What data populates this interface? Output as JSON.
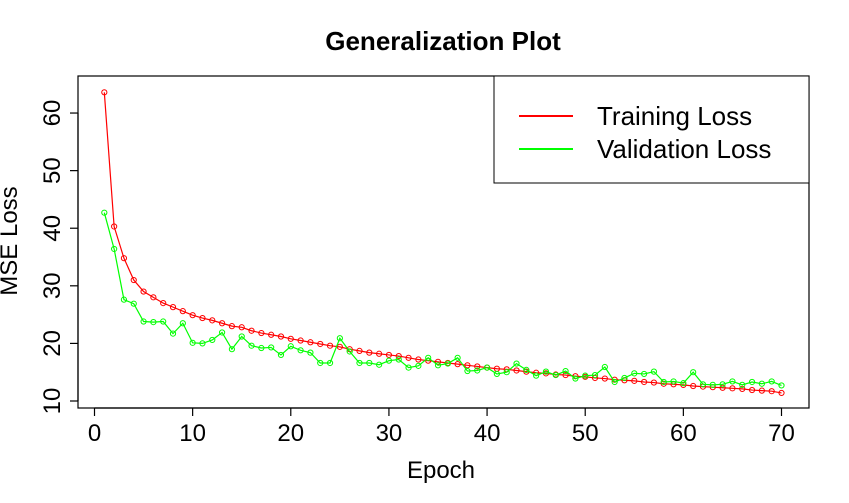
{
  "chart_data": {
    "type": "line",
    "title": "Generalization Plot",
    "xlabel": "Epoch",
    "ylabel": "MSE Loss",
    "xlim": [
      0,
      70
    ],
    "ylim": [
      10,
      64
    ],
    "xticks": [
      0,
      10,
      20,
      30,
      40,
      50,
      60,
      70
    ],
    "yticks": [
      10,
      20,
      30,
      40,
      50,
      60
    ],
    "grid": false,
    "legend_position": "top-right",
    "x": [
      1,
      2,
      3,
      4,
      5,
      6,
      7,
      8,
      9,
      10,
      11,
      12,
      13,
      14,
      15,
      16,
      17,
      18,
      19,
      20,
      21,
      22,
      23,
      24,
      25,
      26,
      27,
      28,
      29,
      30,
      31,
      32,
      33,
      34,
      35,
      36,
      37,
      38,
      39,
      40,
      41,
      42,
      43,
      44,
      45,
      46,
      47,
      48,
      49,
      50,
      51,
      52,
      53,
      54,
      55,
      56,
      57,
      58,
      59,
      60,
      61,
      62,
      63,
      64,
      65,
      66,
      67,
      68,
      69,
      70
    ],
    "series": [
      {
        "name": "Training Loss",
        "color": "#ff0000",
        "values": [
          63.6,
          40.3,
          34.8,
          31.0,
          29.0,
          28.0,
          27.0,
          26.3,
          25.6,
          24.9,
          24.4,
          24.0,
          23.5,
          23.0,
          22.8,
          22.2,
          21.8,
          21.5,
          21.2,
          20.8,
          20.5,
          20.2,
          19.9,
          19.6,
          19.4,
          19.0,
          18.7,
          18.4,
          18.2,
          18.0,
          17.8,
          17.5,
          17.2,
          17.0,
          16.8,
          16.6,
          16.4,
          16.2,
          16.0,
          15.8,
          15.6,
          15.5,
          15.3,
          15.1,
          14.9,
          14.8,
          14.6,
          14.5,
          14.3,
          14.2,
          14.0,
          13.9,
          13.7,
          13.6,
          13.5,
          13.3,
          13.2,
          13.0,
          12.9,
          12.8,
          12.6,
          12.5,
          12.4,
          12.3,
          12.2,
          12.1,
          11.9,
          11.8,
          11.7,
          11.4
        ]
      },
      {
        "name": "Validation Loss",
        "color": "#00ff00",
        "values": [
          42.7,
          36.4,
          27.6,
          26.9,
          23.8,
          23.7,
          23.8,
          21.7,
          23.5,
          20.1,
          20.0,
          20.6,
          21.9,
          19.0,
          21.2,
          19.6,
          19.2,
          19.3,
          18.0,
          19.5,
          18.8,
          18.4,
          16.6,
          16.6,
          20.9,
          18.6,
          16.6,
          16.6,
          16.3,
          17.0,
          17.2,
          15.8,
          16.1,
          17.5,
          16.2,
          16.5,
          17.5,
          15.2,
          15.3,
          15.8,
          14.7,
          15.0,
          16.5,
          15.4,
          14.4,
          15.1,
          14.5,
          15.2,
          13.9,
          14.4,
          14.5,
          15.9,
          13.3,
          14.0,
          14.8,
          14.7,
          15.1,
          13.3,
          13.4,
          13.1,
          15.0,
          12.9,
          12.8,
          12.9,
          13.4,
          12.8,
          13.3,
          13.0,
          13.4,
          12.7
        ]
      }
    ]
  }
}
